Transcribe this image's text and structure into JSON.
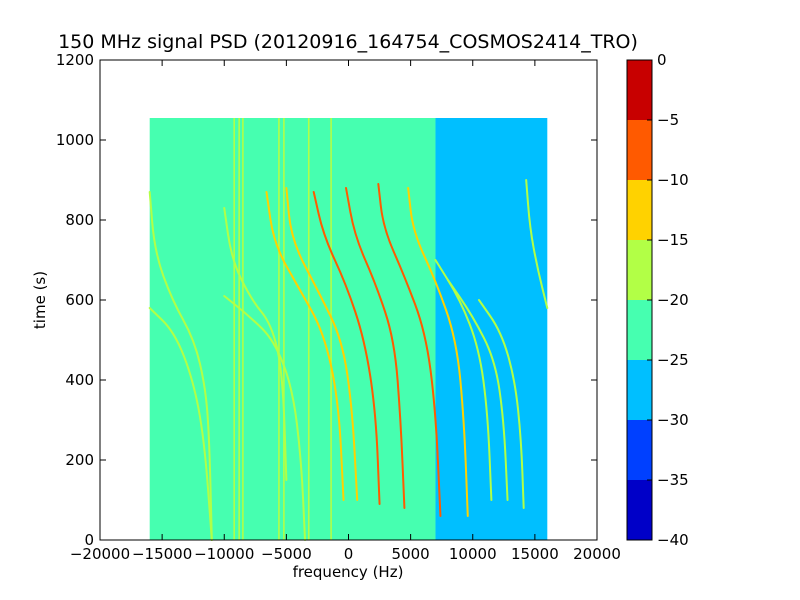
{
  "chart_data": {
    "type": "heatmap",
    "title": "150 MHz signal PSD (20120916_164754_COSMOS2414_TRO)",
    "xlabel": "frequency (Hz)",
    "ylabel": "time (s)",
    "xlim": [
      -20000,
      20000
    ],
    "ylim": [
      0,
      1200
    ],
    "x_ticks": [
      "−20000",
      "−15000",
      "−10000",
      "−5000",
      "0",
      "5000",
      "10000",
      "15000",
      "20000"
    ],
    "x_tick_values": [
      -20000,
      -15000,
      -10000,
      -5000,
      0,
      5000,
      10000,
      15000,
      20000
    ],
    "y_ticks": [
      "0",
      "200",
      "400",
      "600",
      "800",
      "1000",
      "1200"
    ],
    "y_tick_values": [
      0,
      200,
      400,
      600,
      800,
      1000,
      1200
    ],
    "data_extent": {
      "x": [
        -16000,
        16000
      ],
      "y": [
        0,
        1055
      ]
    },
    "colorbar": {
      "range": [
        -40,
        0
      ],
      "ticks": [
        "0",
        "−5",
        "−10",
        "−15",
        "−20",
        "−25",
        "−30",
        "−35",
        "−40"
      ],
      "tick_values": [
        0,
        -5,
        -10,
        -15,
        -20,
        -25,
        -30,
        -35,
        -40
      ],
      "levels": [
        {
          "from": -40,
          "to": -35,
          "color": "#0000c8"
        },
        {
          "from": -35,
          "to": -30,
          "color": "#0040ff"
        },
        {
          "from": -30,
          "to": -25,
          "color": "#00bfff"
        },
        {
          "from": -25,
          "to": -20,
          "color": "#46ffb0"
        },
        {
          "from": -20,
          "to": -15,
          "color": "#b2ff46"
        },
        {
          "from": -15,
          "to": -10,
          "color": "#ffd200"
        },
        {
          "from": -10,
          "to": -5,
          "color": "#ff5a00"
        },
        {
          "from": -5,
          "to": 0,
          "color": "#c80000"
        }
      ]
    },
    "regions": [
      {
        "x": [
          -16000,
          7000
        ],
        "level": -22.5
      },
      {
        "x": [
          7000,
          16000
        ],
        "level": -27.5
      }
    ],
    "vertical_lines": [
      {
        "x": -9200,
        "level": -17.5
      },
      {
        "x": -8800,
        "level": -17.5
      },
      {
        "x": -8500,
        "level": -17.5
      },
      {
        "x": -5600,
        "level": -17.5
      },
      {
        "x": -5200,
        "level": -17.5
      },
      {
        "x": -3200,
        "level": -17.5
      },
      {
        "x": -1400,
        "level": -17.5
      }
    ],
    "traces": [
      {
        "points": [
          [
            -16000,
            580
          ],
          [
            -14000,
            520
          ],
          [
            -12500,
            400
          ],
          [
            -11600,
            250
          ],
          [
            -11000,
            0
          ]
        ],
        "level": -17.5
      },
      {
        "points": [
          [
            -16000,
            870
          ],
          [
            -15600,
            720
          ],
          [
            -14200,
            600
          ],
          [
            -12400,
            500
          ],
          [
            -11500,
            380
          ],
          [
            -11200,
            250
          ],
          [
            -11000,
            0
          ]
        ],
        "level": -17.5
      },
      {
        "points": [
          [
            -10000,
            610
          ],
          [
            -8000,
            560
          ],
          [
            -6000,
            500
          ],
          [
            -4500,
            380
          ],
          [
            -3800,
            200
          ],
          [
            -3500,
            0
          ]
        ],
        "level": -17.5
      },
      {
        "points": [
          [
            -10000,
            830
          ],
          [
            -9400,
            700
          ],
          [
            -7800,
            600
          ],
          [
            -6200,
            540
          ],
          [
            -5300,
            420
          ],
          [
            -5000,
            150
          ]
        ],
        "level": -17.5
      },
      {
        "points": [
          [
            -6600,
            870
          ],
          [
            -6000,
            740
          ],
          [
            -4000,
            630
          ],
          [
            -2000,
            520
          ],
          [
            -800,
            350
          ],
          [
            -400,
            100
          ]
        ],
        "level": -12.5
      },
      {
        "points": [
          [
            -5000,
            880
          ],
          [
            -4600,
            750
          ],
          [
            -2400,
            620
          ],
          [
            -500,
            500
          ],
          [
            300,
            330
          ],
          [
            700,
            100
          ]
        ],
        "level": -12.5
      },
      {
        "points": [
          [
            -2800,
            870
          ],
          [
            -2000,
            760
          ],
          [
            -200,
            640
          ],
          [
            1300,
            500
          ],
          [
            2200,
            320
          ],
          [
            2500,
            90
          ]
        ],
        "level": -7.5
      },
      {
        "points": [
          [
            -200,
            880
          ],
          [
            500,
            760
          ],
          [
            2200,
            640
          ],
          [
            3700,
            500
          ],
          [
            4200,
            300
          ],
          [
            4500,
            80
          ]
        ],
        "level": -7.5
      },
      {
        "points": [
          [
            2400,
            890
          ],
          [
            2800,
            780
          ],
          [
            4500,
            660
          ],
          [
            6200,
            520
          ],
          [
            7000,
            330
          ],
          [
            7400,
            60
          ]
        ],
        "level": -7.5
      },
      {
        "points": [
          [
            4800,
            880
          ],
          [
            5200,
            770
          ],
          [
            7000,
            650
          ],
          [
            8700,
            500
          ],
          [
            9300,
            300
          ],
          [
            9600,
            60
          ]
        ],
        "level": -12.5
      },
      {
        "points": [
          [
            7000,
            700
          ],
          [
            9000,
            600
          ],
          [
            10500,
            480
          ],
          [
            11200,
            320
          ],
          [
            11500,
            100
          ]
        ],
        "level": -17.5
      },
      {
        "points": [
          [
            8000,
            650
          ],
          [
            10000,
            560
          ],
          [
            11800,
            450
          ],
          [
            12500,
            300
          ],
          [
            12800,
            100
          ]
        ],
        "level": -17.5
      },
      {
        "points": [
          [
            10500,
            600
          ],
          [
            12300,
            520
          ],
          [
            13400,
            400
          ],
          [
            13900,
            250
          ],
          [
            14100,
            80
          ]
        ],
        "level": -17.5
      },
      {
        "points": [
          [
            14300,
            900
          ],
          [
            14600,
            780
          ],
          [
            15200,
            680
          ],
          [
            16000,
            580
          ]
        ],
        "level": -17.5
      }
    ]
  }
}
